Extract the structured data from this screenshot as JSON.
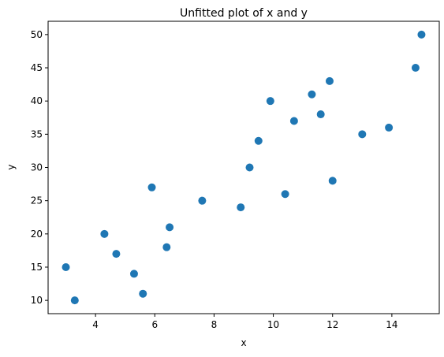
{
  "chart_data": {
    "type": "scatter",
    "title": "Unfitted plot of x and y",
    "xlabel": "x",
    "ylabel": "y",
    "xlim": [
      2.4,
      15.6
    ],
    "ylim": [
      8.0,
      52.0
    ],
    "xticks": [
      4,
      6,
      8,
      10,
      12,
      14
    ],
    "yticks": [
      10,
      15,
      20,
      25,
      30,
      35,
      40,
      45,
      50
    ],
    "grid": false,
    "marker_color": "#1f77b4",
    "points": [
      {
        "x": 3.0,
        "y": 15
      },
      {
        "x": 3.3,
        "y": 10
      },
      {
        "x": 4.3,
        "y": 20
      },
      {
        "x": 4.7,
        "y": 17
      },
      {
        "x": 5.3,
        "y": 14
      },
      {
        "x": 5.6,
        "y": 11
      },
      {
        "x": 5.9,
        "y": 27
      },
      {
        "x": 6.4,
        "y": 18
      },
      {
        "x": 6.5,
        "y": 21
      },
      {
        "x": 7.6,
        "y": 25
      },
      {
        "x": 8.9,
        "y": 24
      },
      {
        "x": 9.2,
        "y": 30
      },
      {
        "x": 9.5,
        "y": 34
      },
      {
        "x": 9.9,
        "y": 40
      },
      {
        "x": 10.4,
        "y": 26
      },
      {
        "x": 10.7,
        "y": 37
      },
      {
        "x": 11.3,
        "y": 41
      },
      {
        "x": 11.6,
        "y": 38
      },
      {
        "x": 11.9,
        "y": 43
      },
      {
        "x": 12.0,
        "y": 28
      },
      {
        "x": 13.0,
        "y": 35
      },
      {
        "x": 13.9,
        "y": 36
      },
      {
        "x": 14.8,
        "y": 45
      },
      {
        "x": 15.0,
        "y": 50
      }
    ]
  }
}
